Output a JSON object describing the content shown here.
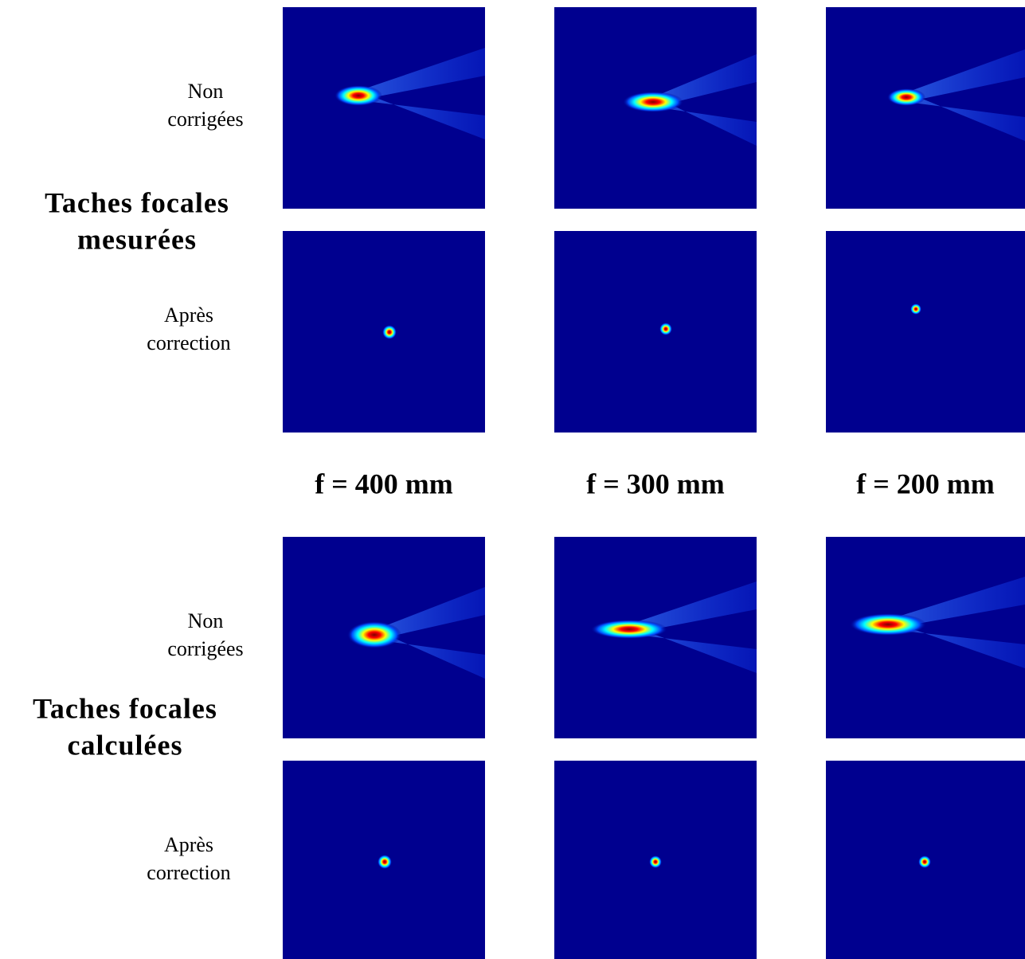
{
  "columns": [
    "f = 400 mm",
    "f = 300 mm",
    "f = 200 mm"
  ],
  "groups": [
    {
      "title": [
        "Taches focales",
        "mesurées"
      ],
      "rows": [
        {
          "label": [
            "Non",
            "corrigées"
          ]
        },
        {
          "label": [
            "Après",
            "correction"
          ]
        }
      ]
    },
    {
      "title": [
        "Taches focales",
        "calculées"
      ],
      "rows": [
        {
          "label": [
            "Non",
            "corrigées"
          ]
        },
        {
          "label": [
            "Après",
            "correction"
          ]
        }
      ]
    }
  ]
}
